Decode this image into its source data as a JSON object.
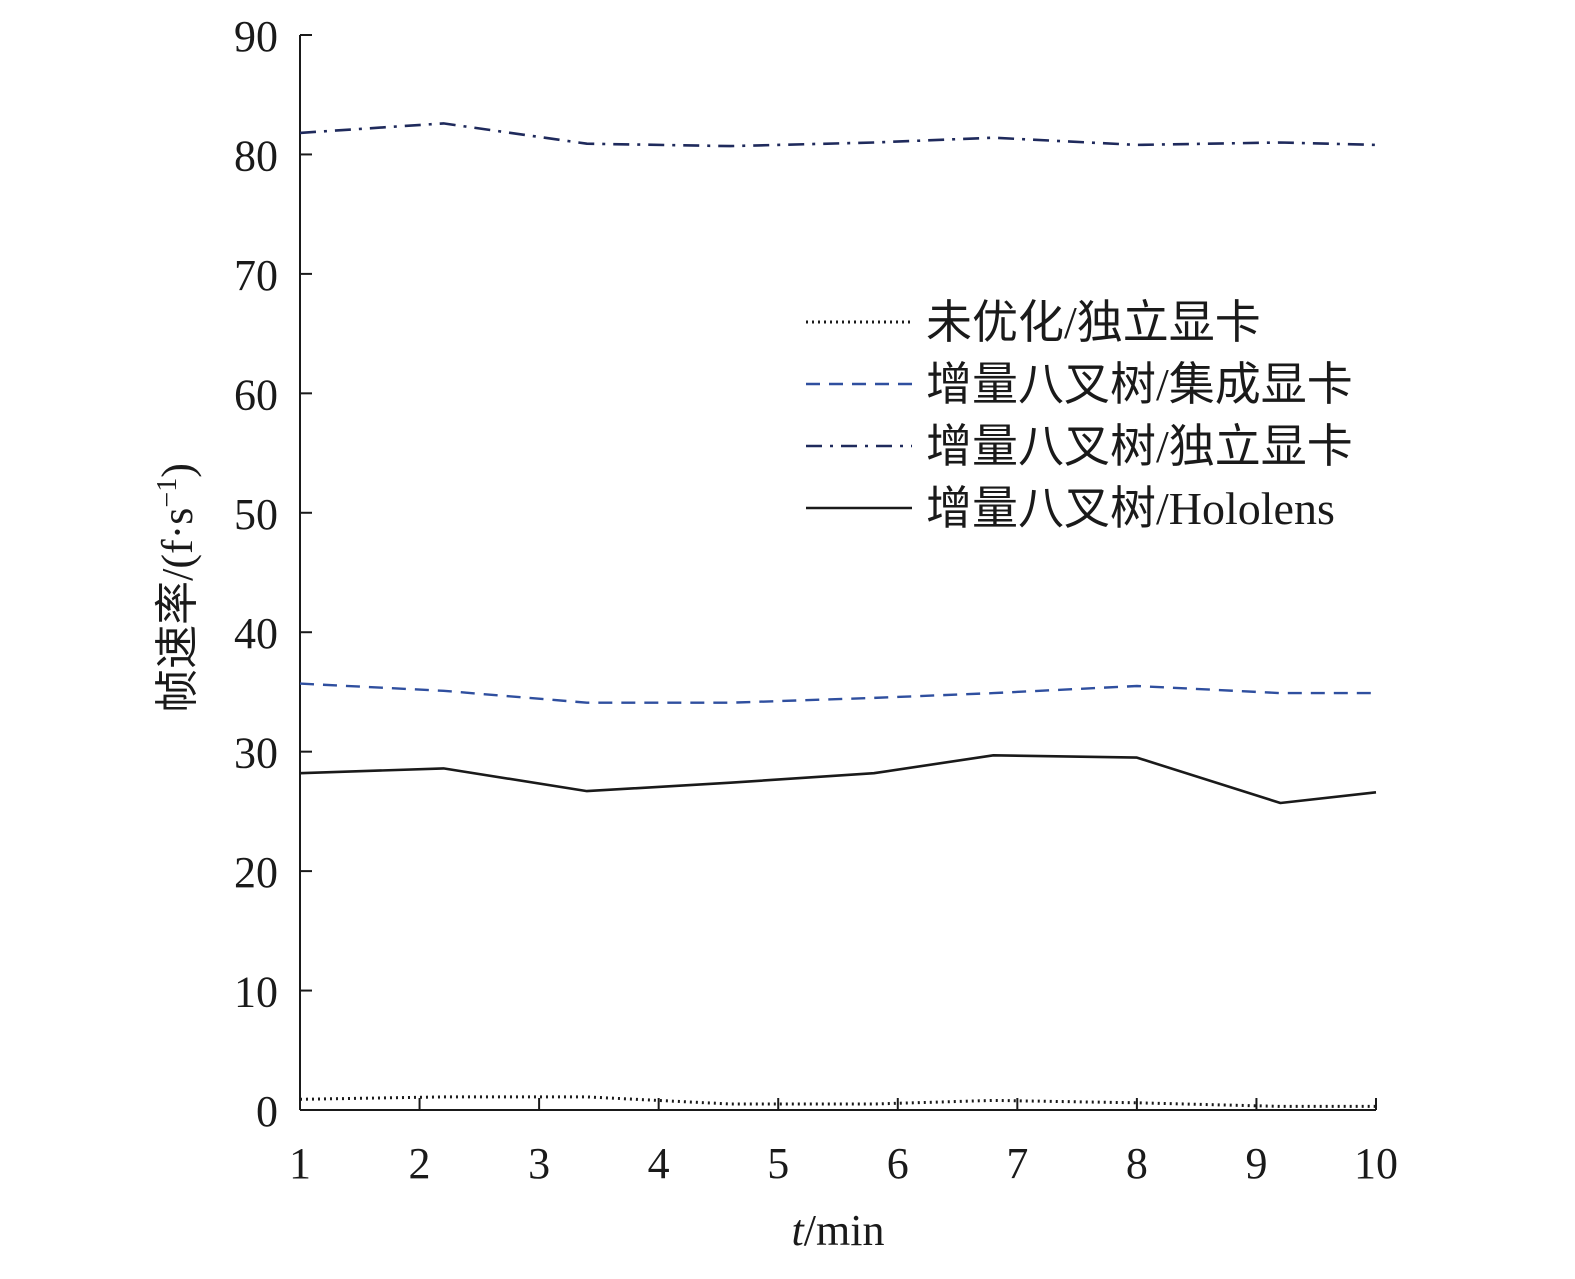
{
  "chart_data": {
    "type": "line",
    "title": "",
    "xlabel_italic": "t",
    "xlabel_rest": "/min",
    "ylabel_main": "帧速率/(f·s",
    "ylabel_sup": "−1",
    "ylabel_close": ")",
    "xlim": [
      1,
      10
    ],
    "ylim": [
      0,
      90
    ],
    "xticks": [
      "1",
      "2",
      "3",
      "4",
      "5",
      "6",
      "7",
      "8",
      "9",
      "10"
    ],
    "yticks": [
      "0",
      "10",
      "20",
      "30",
      "40",
      "50",
      "60",
      "70",
      "80",
      "90"
    ],
    "grid": false,
    "legend_position": "top-right",
    "series": [
      {
        "name": "未优化/独立显卡",
        "style": "dotted",
        "color": "#1a1a1a",
        "x": [
          1,
          2.2,
          3.4,
          4.6,
          5.8,
          6.8,
          8,
          9.2,
          10
        ],
        "y": [
          0.9,
          1.1,
          1.1,
          0.5,
          0.5,
          0.8,
          0.6,
          0.3,
          0.3
        ]
      },
      {
        "name": "增量八叉树/集成显卡",
        "style": "dashed",
        "color": "#2f4f9f",
        "x": [
          1,
          2.2,
          3.4,
          4.6,
          5.8,
          6.8,
          8,
          9.2,
          10
        ],
        "y": [
          35.7,
          35.1,
          34.1,
          34.1,
          34.5,
          34.9,
          35.5,
          34.9,
          34.9
        ]
      },
      {
        "name": "增量八叉树/独立显卡",
        "style": "dashdot",
        "color": "#1f2a5c",
        "x": [
          1,
          2.2,
          3.4,
          4.6,
          5.8,
          6.8,
          8,
          9.2,
          10
        ],
        "y": [
          81.8,
          82.6,
          80.9,
          80.7,
          81.0,
          81.4,
          80.8,
          81.0,
          80.8
        ]
      },
      {
        "name": "增量八叉树/Hololens",
        "style": "solid",
        "color": "#1a1a1a",
        "x": [
          1,
          2.2,
          3.4,
          4.6,
          5.8,
          6.8,
          8,
          9.2,
          10
        ],
        "y": [
          28.2,
          28.6,
          26.7,
          27.4,
          28.2,
          29.7,
          29.5,
          25.7,
          26.6
        ]
      }
    ]
  }
}
